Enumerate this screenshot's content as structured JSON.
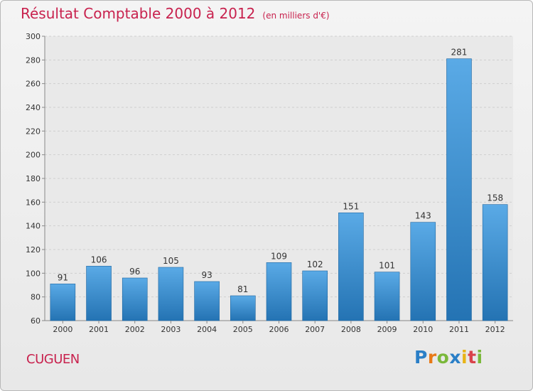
{
  "page": {
    "title": "Résultat Comptable 2000 à 2012",
    "subtitle": "(en milliers d'€)",
    "commune": "CUGUEN",
    "logo_text": "Proxiti"
  },
  "colors": {
    "title": "#c8224e",
    "bar_top": "#5aaae6",
    "bar_bottom": "#2473b3",
    "axis_text": "#333333"
  },
  "chart_data": {
    "type": "bar",
    "title": "Résultat Comptable 2000 à 2012",
    "subtitle": "(en milliers d'€)",
    "categories": [
      "2000",
      "2001",
      "2002",
      "2003",
      "2004",
      "2005",
      "2006",
      "2007",
      "2008",
      "2009",
      "2010",
      "2011",
      "2012"
    ],
    "values": [
      91,
      106,
      96,
      105,
      93,
      81,
      109,
      102,
      151,
      101,
      143,
      281,
      158
    ],
    "ylim": [
      60,
      300
    ],
    "yticks": [
      60,
      80,
      100,
      120,
      140,
      160,
      180,
      200,
      220,
      240,
      260,
      280,
      300
    ],
    "grid": true,
    "data_labels": true
  }
}
